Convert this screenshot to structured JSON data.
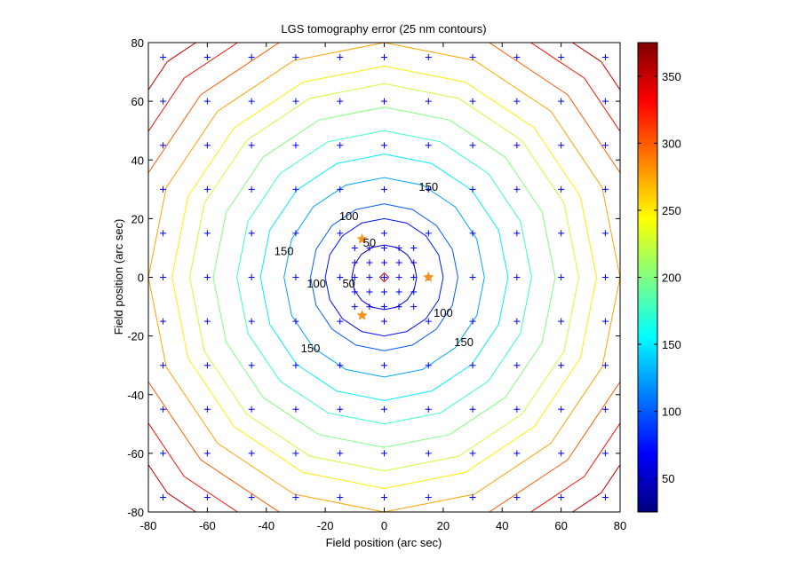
{
  "chart_data": {
    "type": "contour",
    "title": "LGS tomography error (25 nm contours)",
    "xlabel": "Field position (arc sec)",
    "ylabel": "Field position (arc sec)",
    "xlim": [
      -80,
      80
    ],
    "ylim": [
      -80,
      80
    ],
    "x_ticks": [
      -80,
      -60,
      -40,
      -20,
      0,
      20,
      40,
      60,
      80
    ],
    "y_ticks": [
      -80,
      -60,
      -40,
      -20,
      0,
      20,
      40,
      60,
      80
    ],
    "grid": false,
    "contour_interval_nm": 25,
    "contour_levels": [
      50,
      75,
      100,
      125,
      150,
      175,
      200,
      225,
      250,
      275,
      300,
      325,
      350
    ],
    "contour_radii_arcsec": [
      11,
      20,
      25,
      34,
      42,
      50,
      58,
      66,
      72,
      80,
      88,
      96,
      104
    ],
    "contour_labels": [
      {
        "text": "50",
        "x": -5,
        "y": 12
      },
      {
        "text": "50",
        "x": -12,
        "y": -2
      },
      {
        "text": "100",
        "x": -12,
        "y": 21
      },
      {
        "text": "100",
        "x": -23,
        "y": -2
      },
      {
        "text": "100",
        "x": 20,
        "y": -12
      },
      {
        "text": "150",
        "x": -34,
        "y": 9
      },
      {
        "text": "150",
        "x": 15,
        "y": 31
      },
      {
        "text": "150",
        "x": 27,
        "y": -22
      },
      {
        "text": "150",
        "x": -25,
        "y": -24
      }
    ],
    "evaluation_points_coarse": [
      -75,
      -60,
      -45,
      -30,
      -15,
      0,
      15,
      30,
      45,
      60,
      75
    ],
    "evaluation_points_fine": [
      -10,
      -5,
      0,
      5,
      10
    ],
    "guide_stars": [
      {
        "x": -7.5,
        "y": 13
      },
      {
        "x": -7.5,
        "y": -13
      },
      {
        "x": 15,
        "y": 0
      }
    ],
    "science_target": {
      "x": 0,
      "y": 0
    },
    "colorbar": {
      "range": [
        25,
        375
      ],
      "ticks": [
        50,
        100,
        150,
        200,
        250,
        300,
        350
      ],
      "colormap": "jet"
    },
    "colors": {
      "point_marker": "#0000ff",
      "guide_star": "#f7941d",
      "target_marker": "#cc0000"
    }
  }
}
